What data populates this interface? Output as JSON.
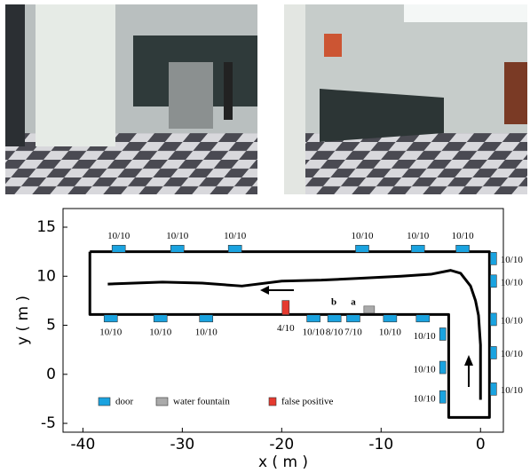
{
  "chart_data": {
    "type": "map",
    "xlabel": "x ( m )",
    "ylabel": "y ( m )",
    "xlim": [
      -42,
      2.3
    ],
    "ylim": [
      -5.9,
      16.9
    ],
    "xticks": [
      -40,
      -30,
      -20,
      -10,
      0
    ],
    "yticks": [
      -5,
      0,
      5,
      10,
      15
    ],
    "corridor": {
      "color": "#000000",
      "x": [
        -39.3,
        0.9,
        0.9,
        -3.2,
        -3.2,
        -39.3,
        -39.3
      ],
      "y": [
        12.5,
        12.5,
        -4.4,
        -4.4,
        6.1,
        6.1,
        12.5
      ]
    },
    "path": {
      "color": "#000000",
      "x": [
        0,
        0,
        -0.2,
        -0.5,
        -1,
        -2,
        -3,
        -5,
        -8,
        -12,
        -16,
        -20,
        -24,
        -28,
        -32,
        -37.5
      ],
      "y": [
        -2.6,
        3,
        6,
        7.5,
        9,
        10.3,
        10.6,
        10.2,
        10,
        9.8,
        9.6,
        9.5,
        9.0,
        9.3,
        9.4,
        9.2
      ]
    },
    "doors": {
      "name": "door",
      "color": "#1aa3e0",
      "x": [
        -36.4,
        -30.5,
        -24.7,
        -11.9,
        -6.3,
        -1.8,
        -37.2,
        -32.2,
        -27.6,
        -16.8,
        -14.7,
        -12.8,
        -9.1,
        -5.8,
        -3.8,
        -3.8,
        -3.8,
        1.3,
        1.3,
        1.3,
        1.3,
        1.3
      ],
      "y": [
        12.8,
        12.8,
        12.8,
        12.8,
        12.8,
        12.8,
        5.7,
        5.7,
        5.7,
        5.7,
        5.7,
        5.7,
        5.7,
        5.7,
        4.1,
        0.7,
        -2.3,
        11.8,
        9.5,
        5.6,
        2.2,
        -1.5
      ],
      "labels": [
        "10/10",
        "10/10",
        "10/10",
        "10/10",
        "10/10",
        "10/10",
        "10/10",
        "10/10",
        "10/10",
        "10/10",
        "8/10",
        "7/10",
        "10/10",
        null,
        "10/10",
        "10/10",
        "10/10",
        "10/10",
        "10/10",
        "10/10",
        "10/10",
        "10/10"
      ]
    },
    "fountain": {
      "name": "water fountain",
      "color": "#aaaaaa",
      "x": [
        -11.2
      ],
      "y": [
        6.6
      ]
    },
    "false_positive": {
      "name": "false positive",
      "color": "#e53a2f",
      "x": [
        -19.6
      ],
      "y": [
        6.8
      ],
      "labels": [
        "4/10"
      ]
    },
    "annotations": [
      "b",
      "a"
    ]
  }
}
